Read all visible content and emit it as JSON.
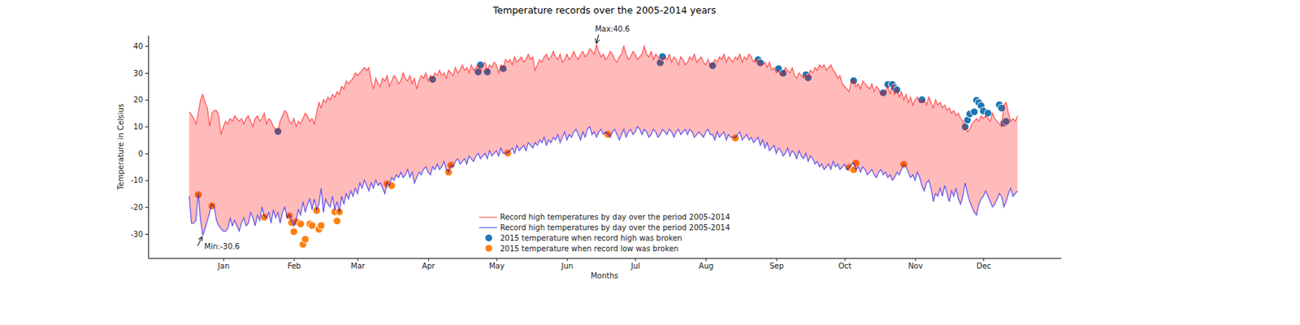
{
  "chart_data": {
    "type": "line",
    "title": "Temperature records over the 2005-2014 years",
    "x_label": "Months",
    "y_label": "Temperature in Celsius",
    "legend": "lower center",
    "xlim": [
      -18,
      383
    ],
    "ylim": [
      -39,
      44
    ],
    "xticks": [
      {
        "value": 15,
        "label": "Jan"
      },
      {
        "value": 46,
        "label": "Feb"
      },
      {
        "value": 74,
        "label": "Mar"
      },
      {
        "value": 105,
        "label": "Apr"
      },
      {
        "value": 135,
        "label": "May"
      },
      {
        "value": 166,
        "label": "Jun"
      },
      {
        "value": 196,
        "label": "Jul"
      },
      {
        "value": 227,
        "label": "Aug"
      },
      {
        "value": 258,
        "label": "Sep"
      },
      {
        "value": 288,
        "label": "Oct"
      },
      {
        "value": 319,
        "label": "Nov"
      },
      {
        "value": 349,
        "label": "Dec"
      }
    ],
    "yticks": [
      -30,
      -20,
      -10,
      0,
      10,
      20,
      30,
      40
    ],
    "x": [
      0,
      1,
      2,
      3,
      4,
      5,
      6,
      7,
      8,
      9,
      10,
      11,
      12,
      13,
      14,
      15,
      16,
      17,
      18,
      19,
      20,
      21,
      22,
      23,
      24,
      25,
      26,
      27,
      28,
      29,
      30,
      31,
      32,
      33,
      34,
      35,
      36,
      37,
      38,
      39,
      40,
      41,
      42,
      43,
      44,
      45,
      46,
      47,
      48,
      49,
      50,
      51,
      52,
      53,
      54,
      55,
      56,
      57,
      58,
      59,
      60,
      61,
      62,
      63,
      64,
      65,
      66,
      67,
      68,
      69,
      70,
      71,
      72,
      73,
      74,
      75,
      76,
      77,
      78,
      79,
      80,
      81,
      82,
      83,
      84,
      85,
      86,
      87,
      88,
      89,
      90,
      91,
      92,
      93,
      94,
      95,
      96,
      97,
      98,
      99,
      100,
      101,
      102,
      103,
      104,
      105,
      106,
      107,
      108,
      109,
      110,
      111,
      112,
      113,
      114,
      115,
      116,
      117,
      118,
      119,
      120,
      121,
      122,
      123,
      124,
      125,
      126,
      127,
      128,
      129,
      130,
      131,
      132,
      133,
      134,
      135,
      136,
      137,
      138,
      139,
      140,
      141,
      142,
      143,
      144,
      145,
      146,
      147,
      148,
      149,
      150,
      151,
      152,
      153,
      154,
      155,
      156,
      157,
      158,
      159,
      160,
      161,
      162,
      163,
      164,
      165,
      166,
      167,
      168,
      169,
      170,
      171,
      172,
      173,
      174,
      175,
      176,
      177,
      178,
      179,
      180,
      181,
      182,
      183,
      184,
      185,
      186,
      187,
      188,
      189,
      190,
      191,
      192,
      193,
      194,
      195,
      196,
      197,
      198,
      199,
      200,
      201,
      202,
      203,
      204,
      205,
      206,
      207,
      208,
      209,
      210,
      211,
      212,
      213,
      214,
      215,
      216,
      217,
      218,
      219,
      220,
      221,
      222,
      223,
      224,
      225,
      226,
      227,
      228,
      229,
      230,
      231,
      232,
      233,
      234,
      235,
      236,
      237,
      238,
      239,
      240,
      241,
      242,
      243,
      244,
      245,
      246,
      247,
      248,
      249,
      250,
      251,
      252,
      253,
      254,
      255,
      256,
      257,
      258,
      259,
      260,
      261,
      262,
      263,
      264,
      265,
      266,
      267,
      268,
      269,
      270,
      271,
      272,
      273,
      274,
      275,
      276,
      277,
      278,
      279,
      280,
      281,
      282,
      283,
      284,
      285,
      286,
      287,
      288,
      289,
      290,
      291,
      292,
      293,
      294,
      295,
      296,
      297,
      298,
      299,
      300,
      301,
      302,
      303,
      304,
      305,
      306,
      307,
      308,
      309,
      310,
      311,
      312,
      313,
      314,
      315,
      316,
      317,
      318,
      319,
      320,
      321,
      322,
      323,
      324,
      325,
      326,
      327,
      328,
      329,
      330,
      331,
      332,
      333,
      334,
      335,
      336,
      337,
      338,
      339,
      340,
      341,
      342,
      343,
      344,
      345,
      346,
      347,
      348,
      349,
      350,
      351,
      352,
      353,
      354,
      355,
      356,
      357,
      358,
      359,
      360,
      361,
      362,
      363,
      364
    ],
    "series": [
      {
        "name": "Record high temperatures by day over the period 2005-2014",
        "type": "line",
        "color": "#ff0000",
        "values": [
          15.5,
          14.5,
          13,
          11,
          15,
          20,
          22,
          19,
          17,
          10,
          15,
          16,
          16,
          14,
          7,
          10,
          12,
          11,
          13,
          12,
          14,
          13,
          12,
          13,
          11,
          13,
          14,
          12,
          10,
          13,
          14,
          12,
          13,
          15,
          11,
          13,
          12,
          10,
          9,
          8.5,
          12,
          14,
          16,
          15,
          12,
          11,
          13,
          10,
          12,
          11,
          13,
          15,
          14,
          12,
          13,
          11,
          15,
          19,
          17,
          20,
          19,
          21,
          20,
          22,
          21,
          23,
          22,
          25,
          24,
          27,
          26,
          27,
          28,
          30,
          29,
          30,
          31,
          32,
          31,
          32,
          27,
          24,
          28,
          26,
          25,
          28,
          27,
          29,
          25,
          27,
          29,
          28,
          26,
          27,
          30,
          28,
          27,
          29,
          26,
          28,
          24,
          27,
          29,
          28,
          30,
          27,
          29,
          28,
          30,
          29,
          31,
          29,
          30,
          28,
          31,
          30,
          29,
          32,
          30,
          31,
          33,
          31,
          32,
          30,
          33,
          31,
          32,
          33,
          31,
          33,
          34,
          31,
          33,
          32,
          34,
          33,
          30,
          33,
          32,
          35,
          34,
          35,
          33,
          36,
          34,
          35,
          36,
          34,
          35,
          37,
          35,
          36,
          31,
          33,
          35,
          34,
          36,
          37,
          35,
          36,
          38,
          36,
          35,
          37,
          34,
          35,
          37,
          35,
          36,
          38,
          36,
          35,
          37,
          38,
          36,
          37,
          39,
          38,
          37,
          40.6,
          38,
          36,
          37,
          35,
          36,
          38,
          37,
          35,
          34,
          36,
          37,
          40,
          37,
          35,
          36,
          38,
          37,
          35,
          36,
          37,
          40,
          37,
          36,
          38,
          35,
          37,
          36,
          34.5,
          35,
          36,
          35,
          37,
          34,
          36,
          35,
          33,
          36,
          35,
          33,
          34,
          36,
          35,
          37,
          34,
          35,
          36,
          34,
          33,
          35,
          33,
          33.5,
          35,
          34,
          36,
          35,
          37,
          34,
          36,
          35,
          34,
          36,
          35,
          37,
          34,
          36,
          35,
          37,
          36,
          34,
          35,
          34.5,
          34.2,
          33,
          34,
          32,
          34,
          31,
          32,
          30,
          31,
          29,
          30.3,
          32,
          31,
          30,
          32,
          29,
          28,
          30,
          29,
          28,
          29.5,
          28.5,
          31,
          30,
          32,
          31,
          33,
          32,
          33,
          31,
          32,
          33,
          31,
          30,
          28,
          29,
          26,
          25,
          24,
          23,
          27,
          27.5,
          25,
          26,
          24,
          27,
          26,
          25,
          24,
          26,
          23,
          25,
          24,
          22,
          23,
          23,
          25,
          22,
          26,
          22,
          24,
          21,
          23,
          20,
          22,
          19,
          21,
          18,
          20,
          21,
          19,
          19.5,
          20,
          18,
          21,
          19,
          17,
          20,
          18,
          19,
          17,
          18,
          16,
          17,
          15,
          16,
          14,
          15,
          13,
          12,
          10,
          8,
          9,
          11,
          12,
          13,
          12,
          14,
          13,
          14,
          13,
          12,
          15,
          13,
          12,
          11,
          10,
          18,
          19,
          15,
          12,
          13,
          12,
          14
        ]
      },
      {
        "name": "Record high temperatures by day over the period 2005-2014",
        "type": "line",
        "color": "#0000ff",
        "values": [
          -16,
          -26,
          -26,
          -25,
          -15,
          -25,
          -30.6,
          -28,
          -25,
          -22,
          -19,
          -20,
          -25,
          -27,
          -28,
          -29,
          -29,
          -28,
          -24,
          -27,
          -25,
          -27,
          -29,
          -26,
          -24,
          -27,
          -26,
          -22,
          -24,
          -27,
          -23,
          -25,
          -20,
          -23.5,
          -24,
          -22,
          -26,
          -21,
          -24,
          -22,
          -26,
          -22,
          -20,
          -24,
          -23,
          -25,
          -27,
          -25,
          -21,
          -23,
          -18,
          -22,
          -19,
          -17,
          -21,
          -17,
          -21,
          -19,
          -13,
          -22,
          -17,
          -19,
          -20,
          -16,
          -21,
          -18,
          -22,
          -16,
          -19,
          -15,
          -17,
          -14,
          -16,
          -13,
          -15,
          -11,
          -13,
          -10,
          -12,
          -14,
          -11,
          -13,
          -10,
          -12,
          -11,
          -13,
          -15,
          -11,
          -12,
          -9,
          -10,
          -8,
          -9,
          -7,
          -9,
          -8,
          -6,
          -9,
          -7,
          -11,
          -9,
          -7,
          -8,
          -6,
          -5,
          -7,
          -8,
          -5,
          -6,
          -4,
          -6,
          -5,
          -3,
          -6,
          -7,
          -4.4,
          -5,
          -3,
          -2,
          -4,
          -3,
          -2,
          -4,
          -1,
          -2,
          -3,
          -1,
          0,
          -2,
          -1,
          0,
          -2,
          1,
          -1,
          0,
          1,
          -1,
          2,
          0,
          0,
          0.2,
          1,
          2,
          0,
          3,
          1,
          2,
          3,
          1,
          4,
          3,
          2,
          4,
          3,
          5,
          4,
          6,
          3,
          5,
          4,
          6,
          5,
          7,
          4,
          6,
          8,
          5,
          7,
          6,
          8,
          9,
          7,
          5,
          8,
          6,
          9,
          10,
          7,
          8,
          6,
          8,
          9,
          7,
          8,
          7.2,
          6,
          8,
          9,
          7,
          5,
          7,
          9,
          6,
          8,
          9,
          7,
          8,
          10,
          9,
          7,
          9,
          8,
          6,
          7,
          9,
          8,
          6,
          7,
          9,
          8,
          7,
          9,
          8,
          6,
          8,
          9,
          7,
          8,
          9,
          7,
          9,
          8,
          6,
          7,
          8,
          7,
          6,
          8,
          9,
          7,
          7,
          5,
          8,
          6,
          7,
          8,
          5,
          7,
          6,
          6,
          5.8,
          7,
          8,
          5,
          6,
          7,
          5,
          6,
          4,
          5,
          6,
          3,
          5,
          2,
          4,
          1,
          2,
          3,
          0,
          2,
          1,
          -1,
          0,
          2,
          -1,
          1,
          0,
          -2,
          1,
          -1,
          -2,
          0,
          -3,
          -1,
          -2,
          -4,
          -3,
          -5,
          -4,
          -6,
          -5,
          -4,
          -6,
          -3,
          -5,
          -4,
          -6,
          -5,
          -4,
          -6,
          -5.5,
          -4,
          -3.5,
          -6,
          -5,
          -7,
          -5,
          -6,
          -8,
          -7,
          -6,
          -8,
          -9,
          -7,
          -6,
          -8,
          -7,
          -9,
          -8,
          -10,
          -9,
          -7,
          -8,
          -6,
          -4.2,
          -5,
          -7,
          -9,
          -8,
          -10,
          -7,
          -9,
          -12,
          -14,
          -11,
          -10,
          -13,
          -18,
          -15,
          -16,
          -13,
          -16,
          -12,
          -15,
          -18,
          -14,
          -16,
          -13,
          -17,
          -19,
          -16,
          -11,
          -15,
          -18,
          -20,
          -22,
          -23,
          -19,
          -17,
          -16,
          -14,
          -16,
          -18,
          -20,
          -19,
          -17,
          -15,
          -16,
          -20,
          -18,
          -15,
          -13,
          -16,
          -15,
          -14
        ]
      },
      {
        "name": "2015 temperature when record high was broken",
        "type": "scatter",
        "color": "#1f77b4",
        "marker": "circle",
        "x": [
          39,
          107,
          127,
          128,
          131,
          138,
          207,
          208,
          230,
          250,
          251,
          259,
          261,
          271,
          272,
          292,
          305,
          307,
          309,
          310,
          311,
          322,
          341,
          342,
          343,
          345,
          346,
          347,
          348,
          349,
          351,
          356,
          357,
          358,
          359
        ],
        "values": [
          8.2,
          27.6,
          30.4,
          33,
          30.4,
          31.6,
          33.8,
          36.1,
          32.7,
          34.9,
          33.8,
          31.6,
          29.9,
          29.3,
          28.2,
          27.1,
          22.6,
          25.7,
          25.7,
          24.5,
          23.7,
          20,
          9.9,
          12.4,
          14.7,
          15.5,
          19.8,
          18.9,
          17.8,
          15.8,
          15,
          18.1,
          16.9,
          11.3,
          11.9
        ]
      },
      {
        "name": "2015 temperature when record low was broken",
        "type": "scatter",
        "color": "#ff7f0e",
        "marker": "circle",
        "x": [
          4,
          10,
          33,
          44,
          45,
          46,
          47,
          49,
          50,
          51,
          53,
          54,
          56,
          57,
          58,
          64,
          65,
          66,
          87,
          89,
          114,
          115,
          140,
          184,
          240,
          290,
          292,
          293,
          314
        ],
        "values": [
          -15.4,
          -19.6,
          -23.8,
          -23.3,
          -25.8,
          -29.2,
          -25.5,
          -26.3,
          -33.9,
          -32,
          -26.3,
          -26.9,
          -21.3,
          -28.3,
          -26.9,
          -21.8,
          -25.2,
          -21.8,
          -11.4,
          -12,
          -7,
          -4.4,
          0.1,
          7.1,
          5.7,
          -5.3,
          -6.1,
          -3.6,
          -4.1
        ]
      }
    ],
    "annotations": [
      {
        "text": "Max:40.6",
        "x": 179,
        "y": 40.6
      },
      {
        "text": "Min:-30.6",
        "x": 6,
        "y": -30.6
      }
    ]
  }
}
